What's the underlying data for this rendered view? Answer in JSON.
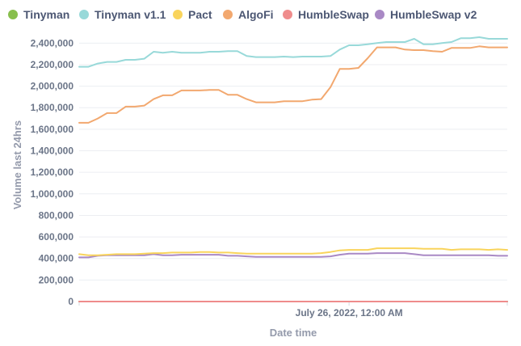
{
  "chart_data": {
    "type": "line",
    "xlabel": "Date time",
    "ylabel": "Volume last 24hrs",
    "ylim": [
      0,
      2500000
    ],
    "yticks": [
      0,
      200000,
      400000,
      600000,
      800000,
      1000000,
      1200000,
      1400000,
      1600000,
      1800000,
      2000000,
      2200000,
      2400000
    ],
    "ytick_labels": [
      "0",
      "200,000",
      "400,000",
      "600,000",
      "800,000",
      "1,000,000",
      "1,200,000",
      "1,400,000",
      "1,600,000",
      "1,800,000",
      "2,000,000",
      "2,200,000",
      "2,400,000"
    ],
    "xtick_labels": [
      "July 26, 2022, 12:00 AM"
    ],
    "xtick_index": 29,
    "n_points": 47,
    "grid": true,
    "legend": "top-left",
    "series": [
      {
        "name": "Tinyman",
        "color": "#88bf4d",
        "values": [
          0,
          0,
          0,
          0,
          0,
          0,
          0,
          0,
          0,
          0,
          0,
          0,
          0,
          0,
          0,
          0,
          0,
          0,
          0,
          0,
          0,
          0,
          0,
          0,
          0,
          0,
          0,
          0,
          0,
          0,
          0,
          0,
          0,
          0,
          0,
          0,
          0,
          0,
          0,
          0,
          0,
          0,
          0,
          0,
          0,
          0,
          0
        ]
      },
      {
        "name": "Tinyman v1.1",
        "color": "#98d9d9",
        "values": [
          2180000,
          2180000,
          2210000,
          2225000,
          2225000,
          2245000,
          2245000,
          2255000,
          2320000,
          2310000,
          2320000,
          2310000,
          2310000,
          2310000,
          2320000,
          2320000,
          2325000,
          2325000,
          2280000,
          2270000,
          2270000,
          2270000,
          2275000,
          2270000,
          2275000,
          2275000,
          2275000,
          2280000,
          2340000,
          2380000,
          2380000,
          2390000,
          2400000,
          2410000,
          2410000,
          2410000,
          2440000,
          2390000,
          2390000,
          2400000,
          2410000,
          2445000,
          2445000,
          2455000,
          2440000,
          2440000,
          2440000
        ]
      },
      {
        "name": "Pact",
        "color": "#f9d45c",
        "values": [
          440000,
          430000,
          430000,
          435000,
          440000,
          440000,
          440000,
          445000,
          450000,
          450000,
          455000,
          455000,
          455000,
          460000,
          460000,
          455000,
          455000,
          450000,
          445000,
          445000,
          445000,
          445000,
          445000,
          445000,
          445000,
          445000,
          450000,
          460000,
          475000,
          480000,
          480000,
          480000,
          495000,
          495000,
          495000,
          495000,
          495000,
          490000,
          490000,
          490000,
          480000,
          485000,
          485000,
          485000,
          480000,
          485000,
          480000
        ]
      },
      {
        "name": "AlgoFi",
        "color": "#f2a86f",
        "values": [
          1660000,
          1660000,
          1700000,
          1750000,
          1750000,
          1810000,
          1810000,
          1820000,
          1880000,
          1915000,
          1915000,
          1960000,
          1960000,
          1960000,
          1965000,
          1965000,
          1920000,
          1920000,
          1880000,
          1850000,
          1850000,
          1850000,
          1860000,
          1860000,
          1860000,
          1875000,
          1880000,
          1990000,
          2160000,
          2160000,
          2170000,
          2260000,
          2360000,
          2360000,
          2360000,
          2340000,
          2335000,
          2335000,
          2325000,
          2320000,
          2355000,
          2355000,
          2355000,
          2370000,
          2360000,
          2360000,
          2360000
        ]
      },
      {
        "name": "HumbleSwap",
        "color": "#ef8c8c",
        "values": [
          0,
          0,
          0,
          0,
          0,
          0,
          0,
          0,
          0,
          0,
          0,
          0,
          0,
          0,
          0,
          0,
          0,
          0,
          0,
          0,
          0,
          0,
          0,
          0,
          0,
          0,
          0,
          0,
          0,
          0,
          0,
          0,
          0,
          0,
          0,
          0,
          0,
          0,
          0,
          0,
          0,
          0,
          0,
          0,
          0,
          0,
          0
        ]
      },
      {
        "name": "HumbleSwap v2",
        "color": "#a989c5",
        "values": [
          410000,
          410000,
          425000,
          430000,
          430000,
          430000,
          430000,
          430000,
          440000,
          430000,
          430000,
          435000,
          435000,
          435000,
          435000,
          435000,
          425000,
          425000,
          420000,
          415000,
          415000,
          415000,
          415000,
          415000,
          415000,
          415000,
          415000,
          420000,
          435000,
          445000,
          445000,
          445000,
          450000,
          450000,
          450000,
          450000,
          440000,
          430000,
          430000,
          430000,
          430000,
          430000,
          430000,
          430000,
          430000,
          425000,
          425000
        ]
      }
    ]
  }
}
